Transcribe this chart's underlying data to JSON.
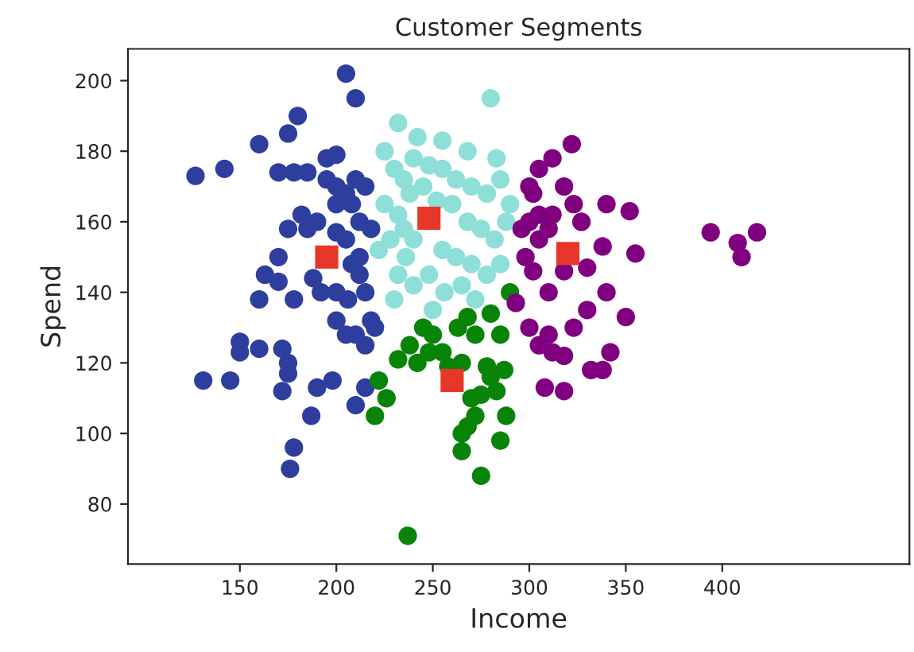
{
  "chart_data": {
    "type": "scatter",
    "title": "Customer Segments",
    "xlabel": "Income",
    "ylabel": "Spend",
    "xlim": [
      92,
      497
    ],
    "ylim": [
      63,
      209
    ],
    "xticks": [
      150,
      200,
      250,
      300,
      350,
      400
    ],
    "yticks": [
      80,
      100,
      120,
      140,
      160,
      180,
      200
    ],
    "grid": false,
    "legend": false,
    "series": [
      {
        "color": "#2d3e9f",
        "marker": "circle",
        "x": [
          127,
          142,
          131,
          160,
          150,
          150,
          175,
          180,
          205,
          210,
          195,
          200,
          170,
          178,
          185,
          195,
          200,
          205,
          210,
          215,
          208,
          200,
          212,
          218,
          205,
          200,
          190,
          185,
          182,
          175,
          170,
          163,
          160,
          170,
          178,
          188,
          192,
          200,
          206,
          212,
          215,
          218,
          200,
          205,
          210,
          215,
          220,
          160,
          172,
          175,
          175,
          145,
          172,
          190,
          198,
          215,
          210,
          187,
          178,
          176,
          212,
          208
        ],
        "values": [
          173,
          175,
          115,
          182,
          126,
          123,
          185,
          190,
          202,
          195,
          178,
          179,
          174,
          174,
          174,
          172,
          170,
          168,
          172,
          170,
          165,
          165,
          160,
          158,
          155,
          157,
          160,
          158,
          162,
          158,
          150,
          145,
          138,
          143,
          138,
          144,
          140,
          140,
          138,
          145,
          140,
          132,
          132,
          128,
          128,
          125,
          130,
          124,
          124,
          120,
          117,
          115,
          112,
          113,
          115,
          113,
          108,
          105,
          96,
          90,
          150,
          148
        ]
      },
      {
        "color": "#8fdfd9",
        "marker": "circle",
        "x": [
          232,
          280,
          242,
          255,
          268,
          225,
          230,
          235,
          240,
          248,
          255,
          262,
          270,
          278,
          285,
          225,
          232,
          238,
          245,
          252,
          260,
          268,
          275,
          282,
          288,
          228,
          236,
          240,
          255,
          262,
          270,
          278,
          285,
          232,
          240,
          248,
          256,
          265,
          272,
          230,
          250,
          235,
          222,
          290,
          283
        ],
        "values": [
          188,
          195,
          184,
          183,
          180,
          180,
          175,
          172,
          178,
          176,
          175,
          172,
          170,
          168,
          172,
          165,
          162,
          168,
          170,
          166,
          165,
          160,
          158,
          155,
          160,
          155,
          150,
          155,
          152,
          150,
          148,
          145,
          148,
          145,
          142,
          145,
          140,
          142,
          138,
          138,
          135,
          158,
          152,
          165,
          178
        ]
      },
      {
        "color": "#088408",
        "marker": "circle",
        "x": [
          222,
          226,
          220,
          232,
          238,
          245,
          250,
          255,
          263,
          268,
          272,
          280,
          285,
          287,
          283,
          278,
          275,
          272,
          270,
          268,
          265,
          265,
          285,
          275,
          280,
          237,
          265,
          258,
          248,
          242,
          290,
          288
        ],
        "values": [
          115,
          110,
          105,
          121,
          125,
          130,
          128,
          123,
          130,
          133,
          128,
          134,
          128,
          118,
          112,
          119,
          111,
          105,
          110,
          102,
          100,
          95,
          98,
          88,
          116,
          71,
          120,
          119,
          123,
          120,
          140,
          105
        ]
      },
      {
        "color": "#800080",
        "marker": "circle",
        "x": [
          293,
          300,
          305,
          302,
          305,
          300,
          296,
          298,
          302,
          305,
          310,
          312,
          312,
          322,
          318,
          323,
          327,
          340,
          338,
          330,
          318,
          310,
          300,
          310,
          312,
          318,
          323,
          330,
          340,
          350,
          352,
          342,
          332,
          305,
          318,
          355,
          394,
          408,
          410,
          418,
          338,
          308
        ],
        "values": [
          137,
          170,
          175,
          168,
          162,
          160,
          158,
          150,
          146,
          155,
          158,
          162,
          178,
          182,
          170,
          165,
          160,
          165,
          153,
          147,
          146,
          140,
          130,
          128,
          123,
          122,
          130,
          135,
          140,
          133,
          163,
          123,
          118,
          125,
          112,
          151,
          157,
          154,
          150,
          157,
          118,
          113
        ]
      },
      {
        "color": "#e8372a",
        "marker": "square",
        "x": [
          195,
          248,
          260,
          320
        ],
        "values": [
          150,
          161,
          115,
          151
        ]
      }
    ]
  }
}
